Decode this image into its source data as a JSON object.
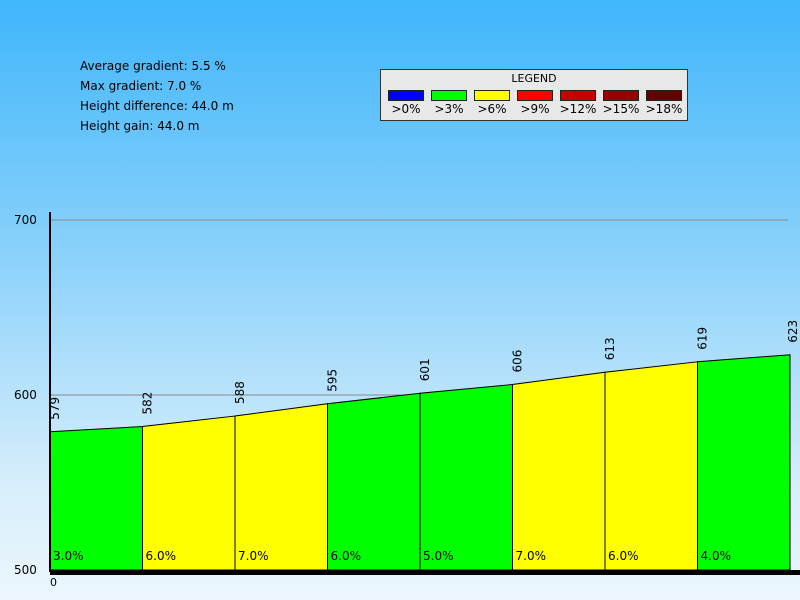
{
  "stats": {
    "avg_gradient": "Average gradient: 5.5 %",
    "max_gradient": "Max gradient: 7.0 %",
    "height_difference": "Height difference: 44.0 m",
    "height_gain": "Height gain: 44.0 m"
  },
  "legend": {
    "title": "LEGEND",
    "items": [
      {
        "label": ">0%",
        "color": "#0000ff"
      },
      {
        "label": ">3%",
        "color": "#00ff00"
      },
      {
        "label": ">6%",
        "color": "#ffff00"
      },
      {
        "label": ">9%",
        "color": "#ff0000"
      },
      {
        "label": ">12%",
        "color": "#c80000"
      },
      {
        "label": ">15%",
        "color": "#960000"
      },
      {
        "label": ">18%",
        "color": "#640000"
      }
    ]
  },
  "chart_data": {
    "type": "area",
    "title": "",
    "xlabel": "",
    "ylabel": "",
    "ylim": [
      500,
      700
    ],
    "y_ticks": [
      500,
      600,
      700
    ],
    "x_tick_label": "0",
    "grid": true,
    "elevations": [
      579,
      582,
      588,
      595,
      601,
      606,
      613,
      619,
      623
    ],
    "segments": [
      {
        "gradient": "3.0%",
        "color": "#00ff00"
      },
      {
        "gradient": "6.0%",
        "color": "#ffff00"
      },
      {
        "gradient": "7.0%",
        "color": "#ffff00"
      },
      {
        "gradient": "6.0%",
        "color": "#00ff00"
      },
      {
        "gradient": "5.0%",
        "color": "#00ff00"
      },
      {
        "gradient": "7.0%",
        "color": "#ffff00"
      },
      {
        "gradient": "6.0%",
        "color": "#ffff00"
      },
      {
        "gradient": "4.0%",
        "color": "#00ff00"
      }
    ]
  }
}
